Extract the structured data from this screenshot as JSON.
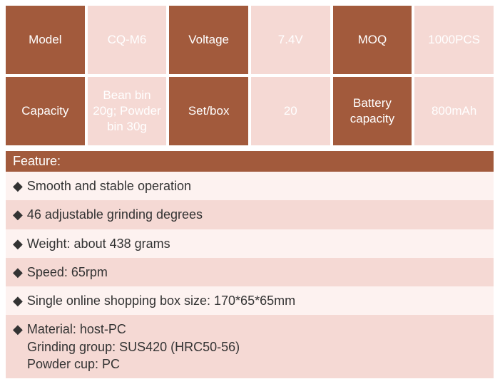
{
  "colors": {
    "header_bg": "#a25a3c",
    "header_text": "#ffffff",
    "value_bg": "#f5d9d4",
    "value_text": "#4a4a4a",
    "feature_odd_bg": "#fdf2f0",
    "feature_even_bg": "#f5d9d4",
    "feature_text": "#333333"
  },
  "spec": {
    "row1": {
      "c1_label": "Model",
      "c1_value": "CQ-M6",
      "c2_label": "Voltage",
      "c2_value": "7.4V",
      "c3_label": "MOQ",
      "c3_value": "1000PCS"
    },
    "row2": {
      "c1_label": "Capacity",
      "c1_value": "Bean bin 20g; Powder bin 30g",
      "c2_label": "Set/box",
      "c2_value": "20",
      "c3_label": "Battery capacity",
      "c3_value": "800mAh"
    }
  },
  "feature_header": "Feature:",
  "features": {
    "f1": "Smooth and stable operation",
    "f2": "46 adjustable grinding degrees",
    "f3": "Weight: about 438 grams",
    "f4": "Speed: 65rpm",
    "f5": "Single online shopping box size: 170*65*65mm",
    "f6_line1": "Material: host-PC",
    "f6_line2": "Grinding group: SUS420 (HRC50-56)",
    "f6_line3": "Powder cup: PC"
  }
}
